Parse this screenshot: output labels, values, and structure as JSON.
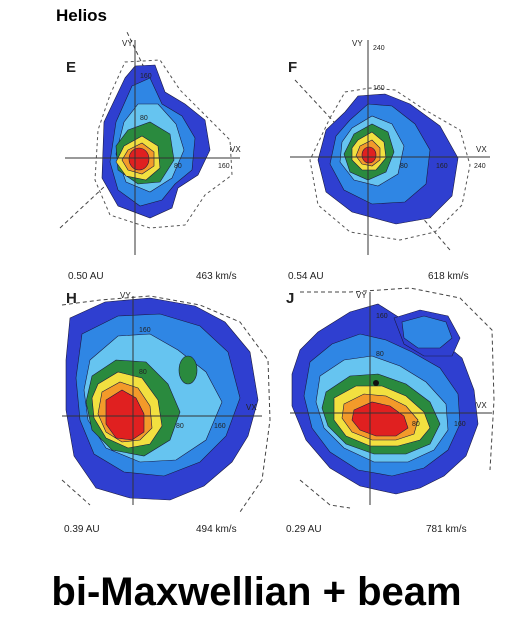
{
  "header": {
    "title": "Helios"
  },
  "caption": {
    "text": "bi-Maxwellian + beam"
  },
  "colors": {
    "level1": "#2f3fd0",
    "level2": "#2f86e4",
    "level3": "#66c4f0",
    "level4": "#2a8a3e",
    "level5": "#f2e040",
    "level6": "#f39a2a",
    "level7": "#e02020"
  },
  "panels": [
    {
      "letter": "E",
      "distance": "0.50 AU",
      "speed": "463 km/s",
      "axes": {
        "vy": "VY",
        "vx": "VX"
      },
      "ticks": [
        "160",
        "80",
        "80",
        "160"
      ]
    },
    {
      "letter": "F",
      "distance": "0.54 AU",
      "speed": "618 km/s",
      "axes": {
        "vy": "VY",
        "vx": "VX"
      },
      "ticks": [
        "240",
        "160",
        "80",
        "160",
        "240"
      ]
    },
    {
      "letter": "H",
      "distance": "0.39 AU",
      "speed": "494 km/s",
      "axes": {
        "vy": "VY",
        "vx": "VX"
      },
      "ticks": [
        "160",
        "80",
        "80",
        "160"
      ]
    },
    {
      "letter": "J",
      "distance": "0.29 AU",
      "speed": "781 km/s",
      "axes": {
        "vy": "VY",
        "vx": "VX"
      },
      "ticks": [
        "160",
        "80",
        "80",
        "160"
      ]
    }
  ]
}
